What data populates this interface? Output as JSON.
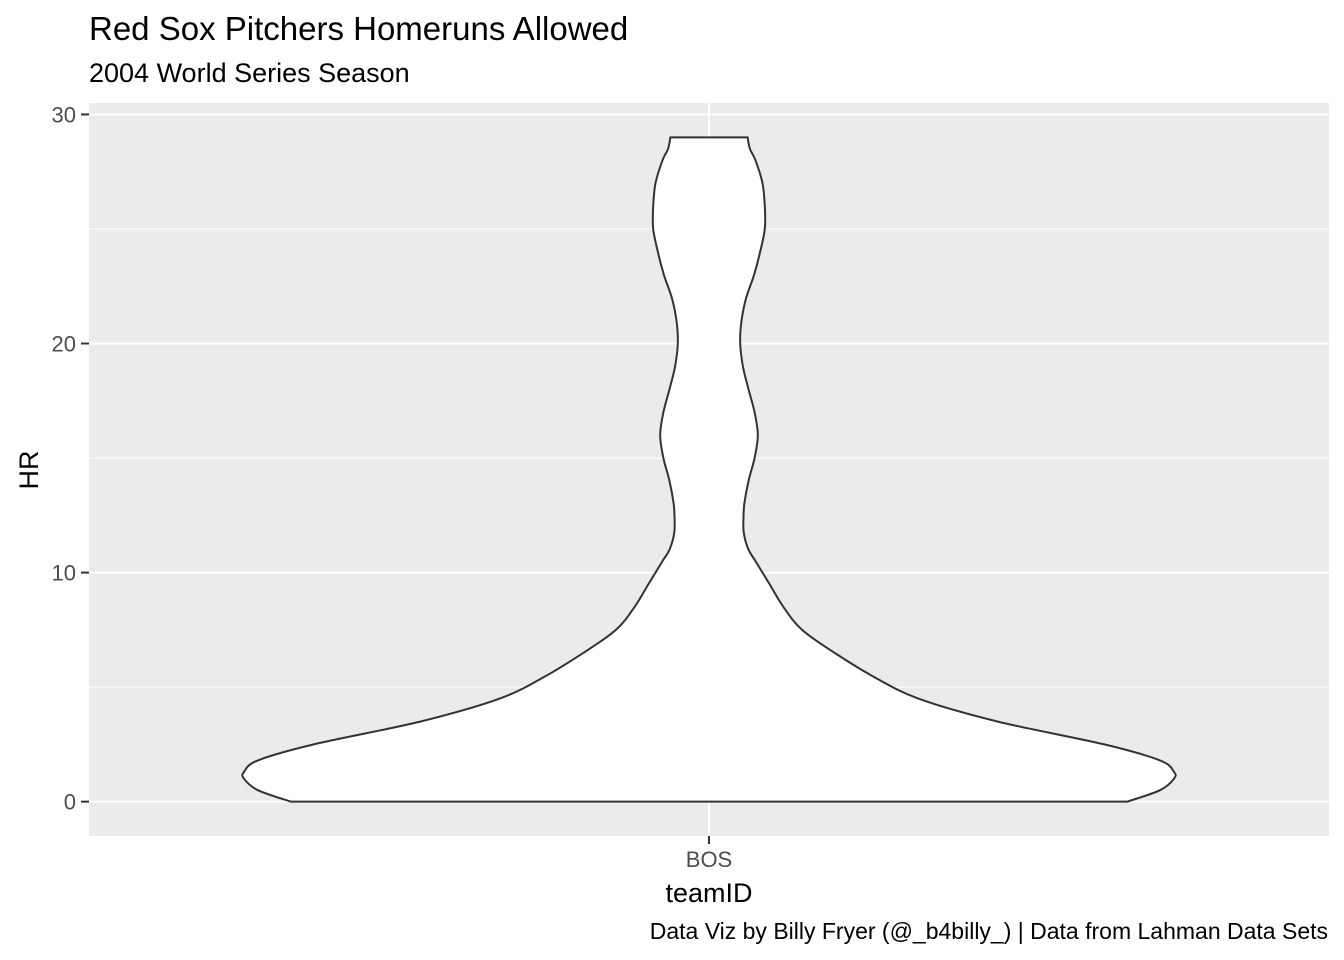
{
  "chart_data": {
    "type": "violin",
    "title": "Red Sox Pitchers Homeruns Allowed",
    "subtitle": "2004 World Series Season",
    "caption": "Data Viz by Billy Fryer (@_b4billy_) | Data from Lahman Data Sets",
    "xlabel": "teamID",
    "ylabel": "HR",
    "categories": [
      "BOS"
    ],
    "ylim": [
      -1.5,
      30.5
    ],
    "yticks": [
      0,
      10,
      20,
      30
    ],
    "grid": true,
    "data_range": [
      0,
      29
    ],
    "density_profile": {
      "y": [
        0,
        0.5,
        1.0,
        1.3,
        1.8,
        2.5,
        3.5,
        4.5,
        5.5,
        6.5,
        7.5,
        8.5,
        9.5,
        10.5,
        11.0,
        11.7,
        12.3,
        13.0,
        14.0,
        15.0,
        16.0,
        17.0,
        18.0,
        19.0,
        20.0,
        21.0,
        22.0,
        23.0,
        24.0,
        25.0,
        26.0,
        27.0,
        28.0,
        28.5,
        29.0
      ],
      "half_width": [
        0.9,
        0.97,
        1.0,
        1.0,
        0.97,
        0.85,
        0.62,
        0.45,
        0.35,
        0.27,
        0.2,
        0.16,
        0.13,
        0.1,
        0.085,
        0.075,
        0.074,
        0.076,
        0.085,
        0.098,
        0.105,
        0.098,
        0.085,
        0.073,
        0.067,
        0.07,
        0.08,
        0.097,
        0.11,
        0.12,
        0.12,
        0.115,
        0.1,
        0.088,
        0.083
      ]
    }
  }
}
